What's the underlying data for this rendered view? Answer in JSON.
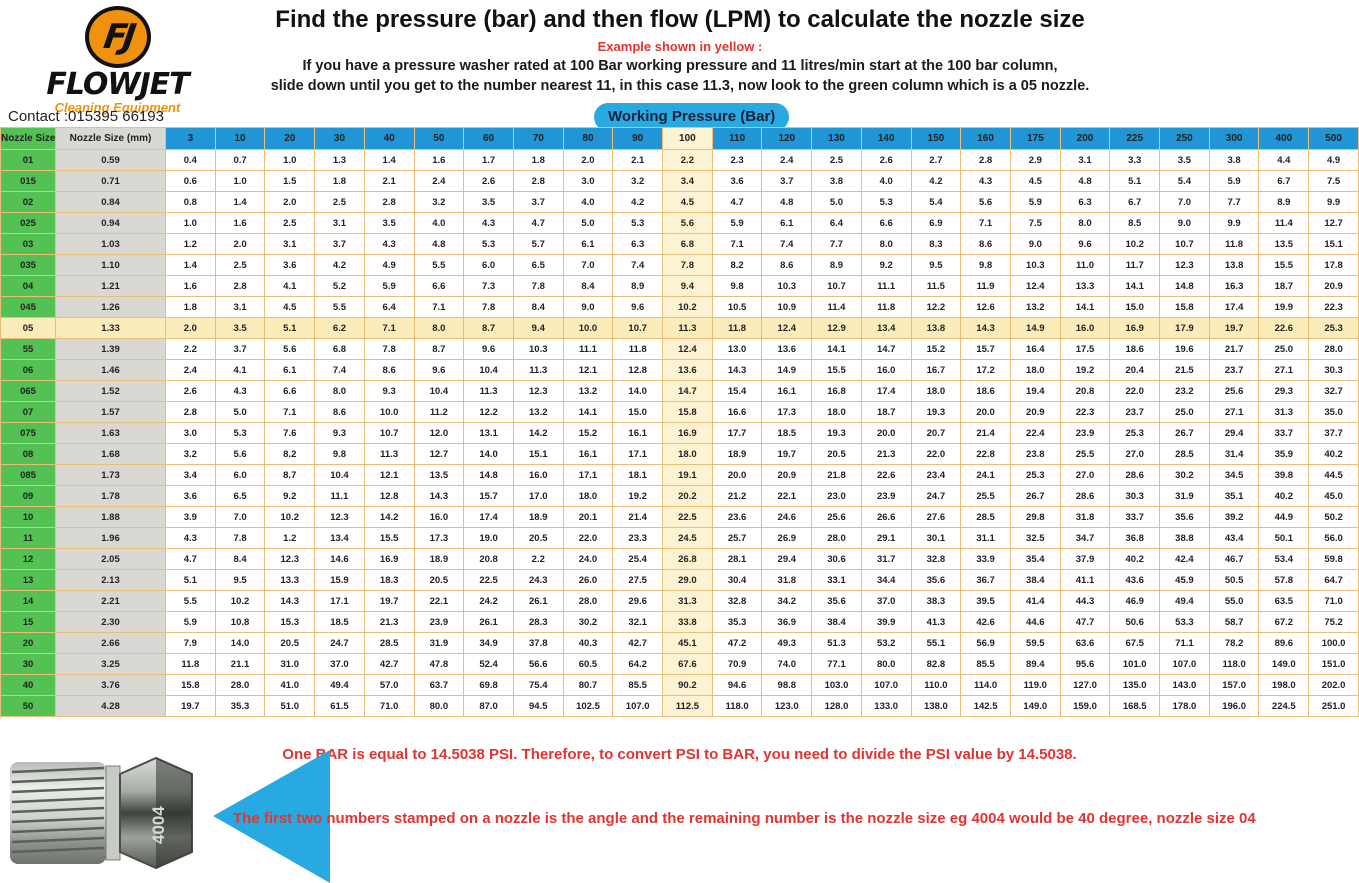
{
  "header": {
    "logo_monogram": "FJ",
    "logo_brand": "FLOWJET",
    "logo_tagline": "Cleaning Equipment",
    "contact": "Contact :015395 66193",
    "title": "Find the pressure (bar) and then flow (LPM) to calculate the nozzle size",
    "example_label": "Example shown in yellow :",
    "instructions_line1": "If you have a pressure washer rated at 100 Bar working pressure and 11 litres/min start at the 100 bar column,",
    "instructions_line2": "slide down until you get to the number nearest 11, in this case 11.3, now look to the green column which is a 05 nozzle.",
    "working_pressure_label": "Working Pressure (Bar)"
  },
  "colors": {
    "brand_orange": "#f0920e",
    "pill_blue": "#29a9e1",
    "header_blue": "#2196d5",
    "green_column": "#53c153",
    "gray_column": "#d9d8d3",
    "highlight_column_yellow": "#fdf3d2",
    "highlight_row_yellow": "#fbecba",
    "grid_tan": "#e9bf79",
    "note_red": "#e23430"
  },
  "table": {
    "col1_header": "Nozzle Size",
    "col2_header": "Nozzle Size (mm)",
    "pressure_columns": [
      "3",
      "10",
      "20",
      "30",
      "40",
      "50",
      "60",
      "70",
      "80",
      "90",
      "100",
      "110",
      "120",
      "130",
      "140",
      "150",
      "160",
      "175",
      "200",
      "225",
      "250",
      "300",
      "400",
      "500"
    ],
    "highlight_column": "100",
    "highlight_row": "05",
    "rows": [
      {
        "size": "01",
        "mm": "0.59",
        "values": [
          "0.4",
          "0.7",
          "1.0",
          "1.3",
          "1.4",
          "1.6",
          "1.7",
          "1.8",
          "2.0",
          "2.1",
          "2.2",
          "2.3",
          "2.4",
          "2.5",
          "2.6",
          "2.7",
          "2.8",
          "2.9",
          "3.1",
          "3.3",
          "3.5",
          "3.8",
          "4.4",
          "4.9"
        ]
      },
      {
        "size": "015",
        "mm": "0.71",
        "values": [
          "0.6",
          "1.0",
          "1.5",
          "1.8",
          "2.1",
          "2.4",
          "2.6",
          "2.8",
          "3.0",
          "3.2",
          "3.4",
          "3.6",
          "3.7",
          "3.8",
          "4.0",
          "4.2",
          "4.3",
          "4.5",
          "4.8",
          "5.1",
          "5.4",
          "5.9",
          "6.7",
          "7.5"
        ]
      },
      {
        "size": "02",
        "mm": "0.84",
        "values": [
          "0.8",
          "1.4",
          "2.0",
          "2.5",
          "2.8",
          "3.2",
          "3.5",
          "3.7",
          "4.0",
          "4.2",
          "4.5",
          "4.7",
          "4.8",
          "5.0",
          "5.3",
          "5.4",
          "5.6",
          "5.9",
          "6.3",
          "6.7",
          "7.0",
          "7.7",
          "8.9",
          "9.9"
        ]
      },
      {
        "size": "025",
        "mm": "0.94",
        "values": [
          "1.0",
          "1.6",
          "2.5",
          "3.1",
          "3.5",
          "4.0",
          "4.3",
          "4.7",
          "5.0",
          "5.3",
          "5.6",
          "5.9",
          "6.1",
          "6.4",
          "6.6",
          "6.9",
          "7.1",
          "7.5",
          "8.0",
          "8.5",
          "9.0",
          "9.9",
          "11.4",
          "12.7"
        ]
      },
      {
        "size": "03",
        "mm": "1.03",
        "values": [
          "1.2",
          "2.0",
          "3.1",
          "3.7",
          "4.3",
          "4.8",
          "5.3",
          "5.7",
          "6.1",
          "6.3",
          "6.8",
          "7.1",
          "7.4",
          "7.7",
          "8.0",
          "8.3",
          "8.6",
          "9.0",
          "9.6",
          "10.2",
          "10.7",
          "11.8",
          "13.5",
          "15.1"
        ]
      },
      {
        "size": "035",
        "mm": "1.10",
        "values": [
          "1.4",
          "2.5",
          "3.6",
          "4.2",
          "4.9",
          "5.5",
          "6.0",
          "6.5",
          "7.0",
          "7.4",
          "7.8",
          "8.2",
          "8.6",
          "8.9",
          "9.2",
          "9.5",
          "9.8",
          "10.3",
          "11.0",
          "11.7",
          "12.3",
          "13.8",
          "15.5",
          "17.8"
        ]
      },
      {
        "size": "04",
        "mm": "1.21",
        "values": [
          "1.6",
          "2.8",
          "4.1",
          "5.2",
          "5.9",
          "6.6",
          "7.3",
          "7.8",
          "8.4",
          "8.9",
          "9.4",
          "9.8",
          "10.3",
          "10.7",
          "11.1",
          "11.5",
          "11.9",
          "12.4",
          "13.3",
          "14.1",
          "14.8",
          "16.3",
          "18.7",
          "20.9"
        ]
      },
      {
        "size": "045",
        "mm": "1.26",
        "values": [
          "1.8",
          "3.1",
          "4.5",
          "5.5",
          "6.4",
          "7.1",
          "7.8",
          "8.4",
          "9.0",
          "9.6",
          "10.2",
          "10.5",
          "10.9",
          "11.4",
          "11.8",
          "12.2",
          "12.6",
          "13.2",
          "14.1",
          "15.0",
          "15.8",
          "17.4",
          "19.9",
          "22.3"
        ]
      },
      {
        "size": "05",
        "mm": "1.33",
        "values": [
          "2.0",
          "3.5",
          "5.1",
          "6.2",
          "7.1",
          "8.0",
          "8.7",
          "9.4",
          "10.0",
          "10.7",
          "11.3",
          "11.8",
          "12.4",
          "12.9",
          "13.4",
          "13.8",
          "14.3",
          "14.9",
          "16.0",
          "16.9",
          "17.9",
          "19.7",
          "22.6",
          "25.3"
        ]
      },
      {
        "size": "55",
        "mm": "1.39",
        "values": [
          "2.2",
          "3.7",
          "5.6",
          "6.8",
          "7.8",
          "8.7",
          "9.6",
          "10.3",
          "11.1",
          "11.8",
          "12.4",
          "13.0",
          "13.6",
          "14.1",
          "14.7",
          "15.2",
          "15.7",
          "16.4",
          "17.5",
          "18.6",
          "19.6",
          "21.7",
          "25.0",
          "28.0"
        ]
      },
      {
        "size": "06",
        "mm": "1.46",
        "values": [
          "2.4",
          "4.1",
          "6.1",
          "7.4",
          "8.6",
          "9.6",
          "10.4",
          "11.3",
          "12.1",
          "12.8",
          "13.6",
          "14.3",
          "14.9",
          "15.5",
          "16.0",
          "16.7",
          "17.2",
          "18.0",
          "19.2",
          "20.4",
          "21.5",
          "23.7",
          "27.1",
          "30.3"
        ]
      },
      {
        "size": "065",
        "mm": "1.52",
        "values": [
          "2.6",
          "4.3",
          "6.6",
          "8.0",
          "9.3",
          "10.4",
          "11.3",
          "12.3",
          "13.2",
          "14.0",
          "14.7",
          "15.4",
          "16.1",
          "16.8",
          "17.4",
          "18.0",
          "18.6",
          "19.4",
          "20.8",
          "22.0",
          "23.2",
          "25.6",
          "29.3",
          "32.7"
        ]
      },
      {
        "size": "07",
        "mm": "1.57",
        "values": [
          "2.8",
          "5.0",
          "7.1",
          "8.6",
          "10.0",
          "11.2",
          "12.2",
          "13.2",
          "14.1",
          "15.0",
          "15.8",
          "16.6",
          "17.3",
          "18.0",
          "18.7",
          "19.3",
          "20.0",
          "20.9",
          "22.3",
          "23.7",
          "25.0",
          "27.1",
          "31.3",
          "35.0"
        ]
      },
      {
        "size": "075",
        "mm": "1.63",
        "values": [
          "3.0",
          "5.3",
          "7.6",
          "9.3",
          "10.7",
          "12.0",
          "13.1",
          "14.2",
          "15.2",
          "16.1",
          "16.9",
          "17.7",
          "18.5",
          "19.3",
          "20.0",
          "20.7",
          "21.4",
          "22.4",
          "23.9",
          "25.3",
          "26.7",
          "29.4",
          "33.7",
          "37.7"
        ]
      },
      {
        "size": "08",
        "mm": "1.68",
        "values": [
          "3.2",
          "5.6",
          "8.2",
          "9.8",
          "11.3",
          "12.7",
          "14.0",
          "15.1",
          "16.1",
          "17.1",
          "18.0",
          "18.9",
          "19.7",
          "20.5",
          "21.3",
          "22.0",
          "22.8",
          "23.8",
          "25.5",
          "27.0",
          "28.5",
          "31.4",
          "35.9",
          "40.2"
        ]
      },
      {
        "size": "085",
        "mm": "1.73",
        "values": [
          "3.4",
          "6.0",
          "8.7",
          "10.4",
          "12.1",
          "13.5",
          "14.8",
          "16.0",
          "17.1",
          "18.1",
          "19.1",
          "20.0",
          "20.9",
          "21.8",
          "22.6",
          "23.4",
          "24.1",
          "25.3",
          "27.0",
          "28.6",
          "30.2",
          "34.5",
          "39.8",
          "44.5"
        ]
      },
      {
        "size": "09",
        "mm": "1.78",
        "values": [
          "3.6",
          "6.5",
          "9.2",
          "11.1",
          "12.8",
          "14.3",
          "15.7",
          "17.0",
          "18.0",
          "19.2",
          "20.2",
          "21.2",
          "22.1",
          "23.0",
          "23.9",
          "24.7",
          "25.5",
          "26.7",
          "28.6",
          "30.3",
          "31.9",
          "35.1",
          "40.2",
          "45.0"
        ]
      },
      {
        "size": "10",
        "mm": "1.88",
        "values": [
          "3.9",
          "7.0",
          "10.2",
          "12.3",
          "14.2",
          "16.0",
          "17.4",
          "18.9",
          "20.1",
          "21.4",
          "22.5",
          "23.6",
          "24.6",
          "25.6",
          "26.6",
          "27.6",
          "28.5",
          "29.8",
          "31.8",
          "33.7",
          "35.6",
          "39.2",
          "44.9",
          "50.2"
        ]
      },
      {
        "size": "11",
        "mm": "1.96",
        "values": [
          "4.3",
          "7.8",
          "1.2",
          "13.4",
          "15.5",
          "17.3",
          "19.0",
          "20.5",
          "22.0",
          "23.3",
          "24.5",
          "25.7",
          "26.9",
          "28.0",
          "29.1",
          "30.1",
          "31.1",
          "32.5",
          "34.7",
          "36.8",
          "38.8",
          "43.4",
          "50.1",
          "56.0"
        ]
      },
      {
        "size": "12",
        "mm": "2.05",
        "values": [
          "4.7",
          "8.4",
          "12.3",
          "14.6",
          "16.9",
          "18.9",
          "20.8",
          "2.2",
          "24.0",
          "25.4",
          "26.8",
          "28.1",
          "29.4",
          "30.6",
          "31.7",
          "32.8",
          "33.9",
          "35.4",
          "37.9",
          "40.2",
          "42.4",
          "46.7",
          "53.4",
          "59.8"
        ]
      },
      {
        "size": "13",
        "mm": "2.13",
        "values": [
          "5.1",
          "9.5",
          "13.3",
          "15.9",
          "18.3",
          "20.5",
          "22.5",
          "24.3",
          "26.0",
          "27.5",
          "29.0",
          "30.4",
          "31.8",
          "33.1",
          "34.4",
          "35.6",
          "36.7",
          "38.4",
          "41.1",
          "43.6",
          "45.9",
          "50.5",
          "57.8",
          "64.7"
        ]
      },
      {
        "size": "14",
        "mm": "2.21",
        "values": [
          "5.5",
          "10.2",
          "14.3",
          "17.1",
          "19.7",
          "22.1",
          "24.2",
          "26.1",
          "28.0",
          "29.6",
          "31.3",
          "32.8",
          "34.2",
          "35.6",
          "37.0",
          "38.3",
          "39.5",
          "41.4",
          "44.3",
          "46.9",
          "49.4",
          "55.0",
          "63.5",
          "71.0"
        ]
      },
      {
        "size": "15",
        "mm": "2.30",
        "values": [
          "5.9",
          "10.8",
          "15.3",
          "18.5",
          "21.3",
          "23.9",
          "26.1",
          "28.3",
          "30.2",
          "32.1",
          "33.8",
          "35.3",
          "36.9",
          "38.4",
          "39.9",
          "41.3",
          "42.6",
          "44.6",
          "47.7",
          "50.6",
          "53.3",
          "58.7",
          "67.2",
          "75.2"
        ]
      },
      {
        "size": "20",
        "mm": "2.66",
        "values": [
          "7.9",
          "14.0",
          "20.5",
          "24.7",
          "28.5",
          "31.9",
          "34.9",
          "37.8",
          "40.3",
          "42.7",
          "45.1",
          "47.2",
          "49.3",
          "51.3",
          "53.2",
          "55.1",
          "56.9",
          "59.5",
          "63.6",
          "67.5",
          "71.1",
          "78.2",
          "89.6",
          "100.0"
        ]
      },
      {
        "size": "30",
        "mm": "3.25",
        "values": [
          "11.8",
          "21.1",
          "31.0",
          "37.0",
          "42.7",
          "47.8",
          "52.4",
          "56.6",
          "60.5",
          "64.2",
          "67.6",
          "70.9",
          "74.0",
          "77.1",
          "80.0",
          "82.8",
          "85.5",
          "89.4",
          "95.6",
          "101.0",
          "107.0",
          "118.0",
          "149.0",
          "151.0"
        ]
      },
      {
        "size": "40",
        "mm": "3.76",
        "values": [
          "15.8",
          "28.0",
          "41.0",
          "49.4",
          "57.0",
          "63.7",
          "69.8",
          "75.4",
          "80.7",
          "85.5",
          "90.2",
          "94.6",
          "98.8",
          "103.0",
          "107.0",
          "110.0",
          "114.0",
          "119.0",
          "127.0",
          "135.0",
          "143.0",
          "157.0",
          "198.0",
          "202.0"
        ]
      },
      {
        "size": "50",
        "mm": "4.28",
        "values": [
          "19.7",
          "35.3",
          "51.0",
          "61.5",
          "71.0",
          "80.0",
          "87.0",
          "94.5",
          "102.5",
          "107.0",
          "112.5",
          "118.0",
          "123.0",
          "128.0",
          "133.0",
          "138.0",
          "142.5",
          "149.0",
          "159.0",
          "168.5",
          "178.0",
          "196.0",
          "224.5",
          "251.0"
        ]
      }
    ]
  },
  "footer": {
    "psi_note": "One BAR is equal to 14.5038 PSI. Therefore, to convert PSI to BAR, you need to divide the PSI value by 14.5038.",
    "nozzle_note": "The first two numbers stamped on a nozzle is the angle and the remaining number is the nozzle size eg 4004 would be 40 degree, nozzle size 04",
    "nozzle_stamp": "4004"
  }
}
